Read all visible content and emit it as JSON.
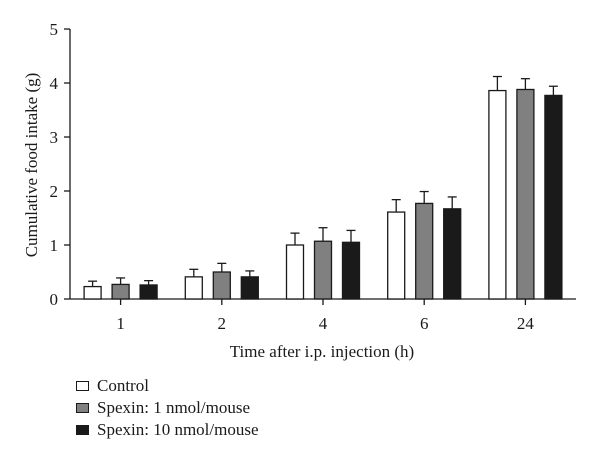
{
  "chart_data": {
    "type": "bar",
    "ylabel": "Cumulative food intake (g)",
    "xlabel": "Time after i.p. injection (h)",
    "categories": [
      "1",
      "2",
      "4",
      "6",
      "24"
    ],
    "ylim": [
      0,
      5
    ],
    "yticks": [
      "0",
      "1",
      "2",
      "3",
      "4",
      "5"
    ],
    "series": [
      {
        "name": "Control",
        "color": "#ffffff",
        "values": [
          0.23,
          0.41,
          1.0,
          1.61,
          3.86
        ],
        "errors": [
          0.1,
          0.14,
          0.22,
          0.23,
          0.26
        ]
      },
      {
        "name": "Spexin: 1 nmol/mouse",
        "color": "#808080",
        "values": [
          0.27,
          0.5,
          1.07,
          1.77,
          3.88
        ],
        "errors": [
          0.12,
          0.16,
          0.25,
          0.22,
          0.2
        ]
      },
      {
        "name": "Spexin: 10 nmol/mouse",
        "color": "#1a1a1a",
        "values": [
          0.26,
          0.41,
          1.05,
          1.67,
          3.77
        ],
        "errors": [
          0.08,
          0.11,
          0.22,
          0.22,
          0.17
        ]
      }
    ],
    "errorbars": "upper",
    "grid": false,
    "legend": "bottom-left"
  }
}
